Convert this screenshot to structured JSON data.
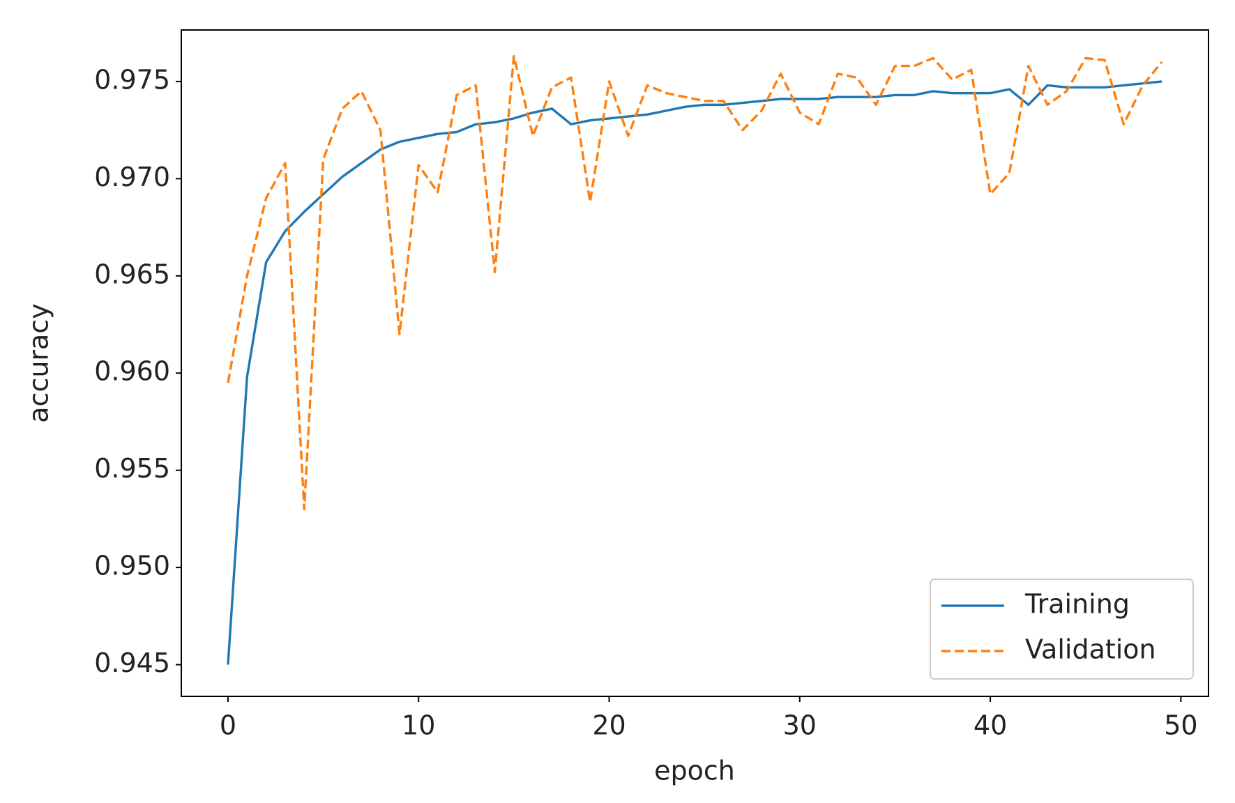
{
  "chart_data": {
    "type": "line",
    "x_label": "epoch",
    "y_label": "accuracy",
    "x": [
      0,
      1,
      2,
      3,
      4,
      5,
      6,
      7,
      8,
      9,
      10,
      11,
      12,
      13,
      14,
      15,
      16,
      17,
      18,
      19,
      20,
      21,
      22,
      23,
      24,
      25,
      26,
      27,
      28,
      29,
      30,
      31,
      32,
      33,
      34,
      35,
      36,
      37,
      38,
      39,
      40,
      41,
      42,
      43,
      44,
      45,
      46,
      47,
      48,
      49
    ],
    "series": [
      {
        "name": "Training",
        "color": "#1f77b4",
        "dash": false,
        "values": [
          0.945,
          0.9598,
          0.9657,
          0.9673,
          0.9683,
          0.9692,
          0.9701,
          0.9708,
          0.9715,
          0.9719,
          0.9721,
          0.9723,
          0.9724,
          0.9728,
          0.9729,
          0.9731,
          0.9734,
          0.9736,
          0.9728,
          0.973,
          0.9731,
          0.9732,
          0.9733,
          0.9735,
          0.9737,
          0.9738,
          0.9738,
          0.9739,
          0.974,
          0.9741,
          0.9741,
          0.9741,
          0.9742,
          0.9742,
          0.9742,
          0.9743,
          0.9743,
          0.9745,
          0.9744,
          0.9744,
          0.9744,
          0.9746,
          0.9738,
          0.9748,
          0.9747,
          0.9747,
          0.9747,
          0.9748,
          0.9749,
          0.975
        ]
      },
      {
        "name": "Validation",
        "color": "#ff7f0e",
        "dash": true,
        "values": [
          0.9595,
          0.965,
          0.969,
          0.9708,
          0.953,
          0.971,
          0.9736,
          0.9745,
          0.9725,
          0.962,
          0.9707,
          0.9693,
          0.9743,
          0.9748,
          0.9652,
          0.9763,
          0.9722,
          0.9747,
          0.9752,
          0.9688,
          0.975,
          0.9722,
          0.9748,
          0.9744,
          0.9742,
          0.974,
          0.974,
          0.9725,
          0.9735,
          0.9754,
          0.9734,
          0.9728,
          0.9754,
          0.9752,
          0.9738,
          0.9758,
          0.9758,
          0.9762,
          0.9751,
          0.9756,
          0.9692,
          0.9703,
          0.9758,
          0.9738,
          0.9745,
          0.9762,
          0.9761,
          0.9728,
          0.9748,
          0.976
        ]
      }
    ],
    "xlim": [
      -2.45,
      51.45
    ],
    "ylim": [
      0.94337,
      0.97765
    ],
    "xticks": [
      0,
      10,
      20,
      30,
      40,
      50
    ],
    "yticks": [
      0.945,
      {
        "value": 0.95,
        "label": "0.950"
      },
      0.955,
      {
        "value": 0.96,
        "label": "0.960"
      },
      0.965,
      {
        "value": 0.97,
        "label": "0.970"
      },
      0.975
    ],
    "legend": "lower right",
    "grid": false
  }
}
